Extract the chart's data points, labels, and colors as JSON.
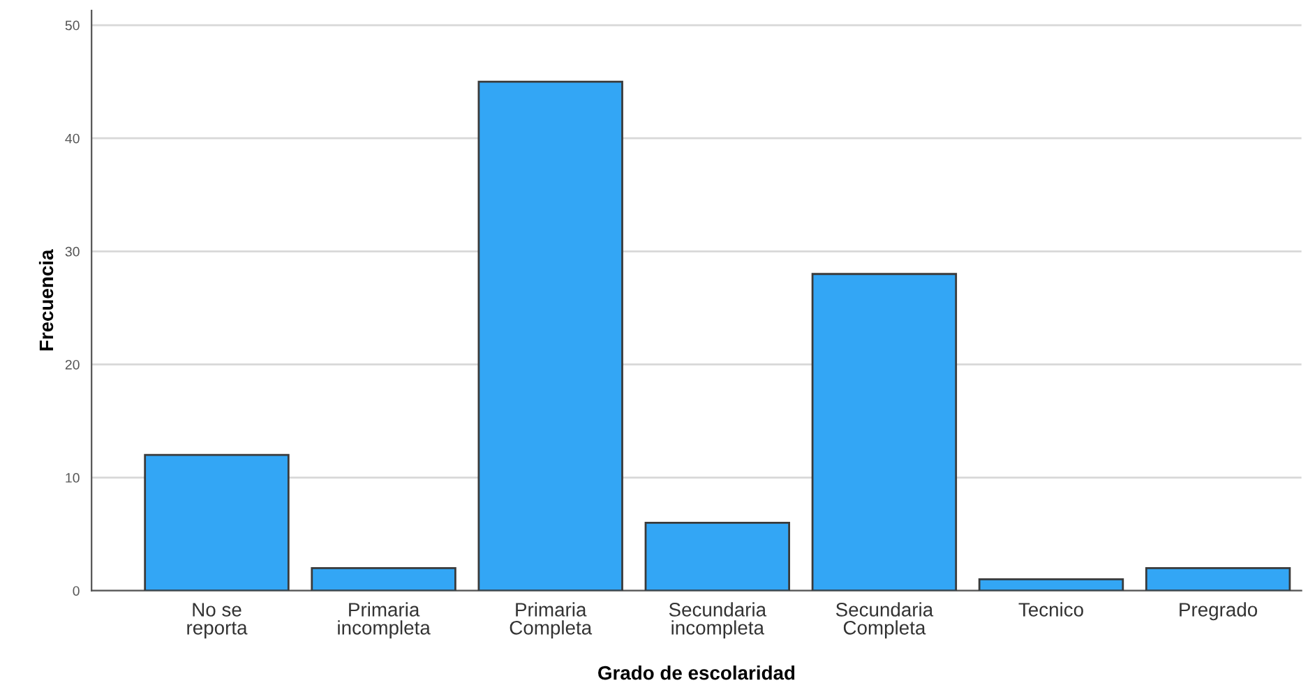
{
  "chart_data": {
    "type": "bar",
    "xlabel": "Grado de escolaridad",
    "ylabel": "Frecuencia",
    "categories": [
      "No se\nreporta",
      "Primaria\nincompleta",
      "Primaria\nCompleta",
      "Secundaria\nincompleta",
      "Secundaria\nCompleta",
      "Tecnico",
      "Pregrado"
    ],
    "values": [
      12,
      2,
      45,
      6,
      28,
      1,
      2
    ],
    "color": "#33a6f5",
    "ylim": [
      0,
      51.3
    ],
    "yticks": [
      0,
      10,
      20,
      30,
      40,
      50
    ],
    "grid": "y",
    "legend": false
  }
}
